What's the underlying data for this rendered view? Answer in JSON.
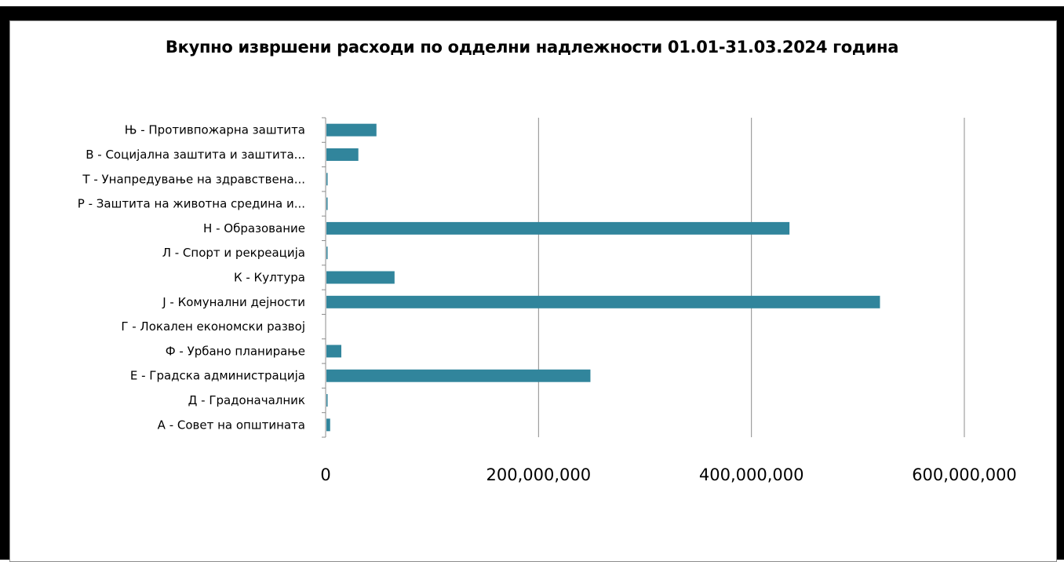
{
  "top_text": "",
  "colors": {
    "bar": "#31859c",
    "grid": "#8c8c8c",
    "axis": "#8c8c8c"
  },
  "chart_data": {
    "type": "bar",
    "orientation": "horizontal",
    "title": "Вкупно извршени расходи   по одделни надлежности 01.01-31.03.2024 година",
    "xlabel": "",
    "ylabel": "",
    "xlim": [
      0,
      600000000
    ],
    "xticks": [
      0,
      200000000,
      400000000,
      600000000
    ],
    "xtick_labels": [
      "0",
      "200,000,000",
      "400,000,000",
      "600,000,000"
    ],
    "grid": "vertical major gridlines",
    "legend": "none",
    "categories": [
      "Њ - Противпожарна заштита",
      "В - Социјална заштита и заштита...",
      "Т - Унапредување на здравствена...",
      "Р - Заштита на животна средина и...",
      "Н - Образование",
      "Л - Спорт и рекреација",
      "К - Култура",
      "Ј - Комунални дејности",
      "Г - Локален економски развој",
      "Ф - Урбано планирање",
      "Е - Градска администрација",
      "Д - Градоначалник",
      "А - Совет на општината"
    ],
    "values": [
      47000000,
      30000000,
      1000000,
      1000000,
      435000000,
      1000000,
      64000000,
      520000000,
      0,
      14000000,
      248000000,
      1000000,
      3500000
    ]
  }
}
